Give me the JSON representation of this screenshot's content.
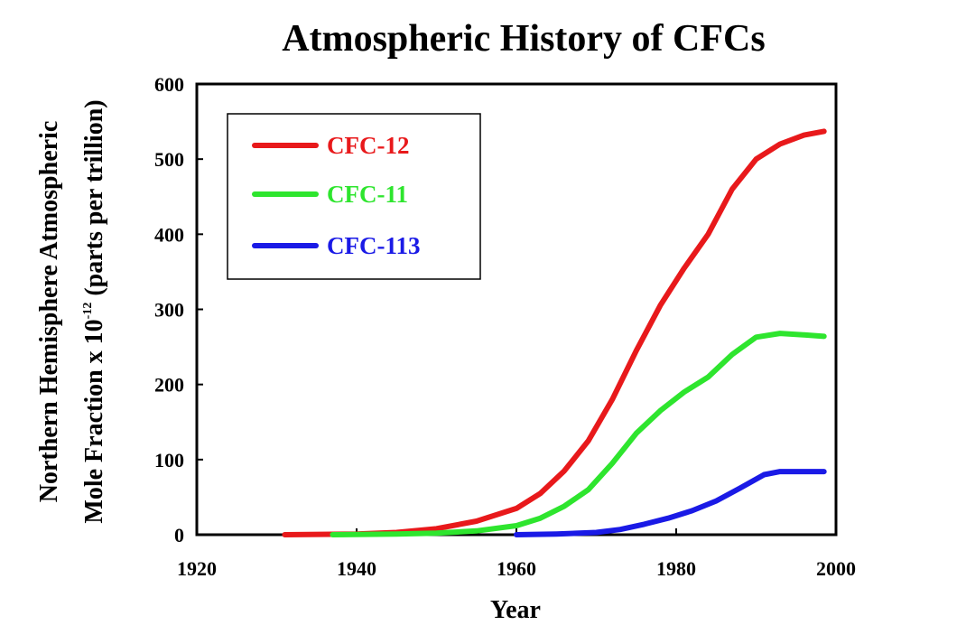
{
  "chart_data": {
    "type": "line",
    "title": "Atmospheric History of CFCs",
    "xlabel": "Year",
    "ylabel_line1": "Northern Hemisphere Atmospheric",
    "ylabel_line2_before": "Mole Fraction x 10",
    "ylabel_line2_exponent": "-12",
    "ylabel_line2_after": " (parts per trillion)",
    "xlim": [
      1920,
      2000
    ],
    "ylim": [
      0,
      600
    ],
    "xticks": [
      1920,
      1940,
      1960,
      1980,
      2000
    ],
    "yticks": [
      0,
      100,
      200,
      300,
      400,
      500,
      600
    ],
    "grid": false,
    "legend_position": "top-left",
    "series": [
      {
        "name": "CFC-12",
        "color": "#e8191b",
        "x": [
          1931,
          1940,
          1945,
          1950,
          1955,
          1960,
          1963,
          1966,
          1969,
          1972,
          1975,
          1978,
          1981,
          1984,
          1987,
          1990,
          1993,
          1996,
          1998.5
        ],
        "y": [
          0,
          1,
          3,
          8,
          18,
          35,
          55,
          85,
          125,
          180,
          245,
          305,
          355,
          400,
          460,
          500,
          520,
          532,
          537
        ]
      },
      {
        "name": "CFC-11",
        "color": "#2ee52e",
        "x": [
          1937,
          1945,
          1950,
          1955,
          1960,
          1963,
          1966,
          1969,
          1972,
          1975,
          1978,
          1981,
          1984,
          1987,
          1990,
          1993,
          1996,
          1998.5
        ],
        "y": [
          0,
          1,
          2,
          5,
          12,
          22,
          38,
          60,
          95,
          135,
          165,
          190,
          210,
          240,
          263,
          268,
          266,
          264
        ]
      },
      {
        "name": "CFC-113",
        "color": "#1a1ae6",
        "x": [
          1960,
          1965,
          1970,
          1973,
          1976,
          1979,
          1982,
          1985,
          1988,
          1991,
          1993,
          1996,
          1998.5
        ],
        "y": [
          0,
          1,
          3,
          7,
          14,
          22,
          32,
          45,
          62,
          80,
          84,
          84,
          84
        ]
      }
    ]
  }
}
